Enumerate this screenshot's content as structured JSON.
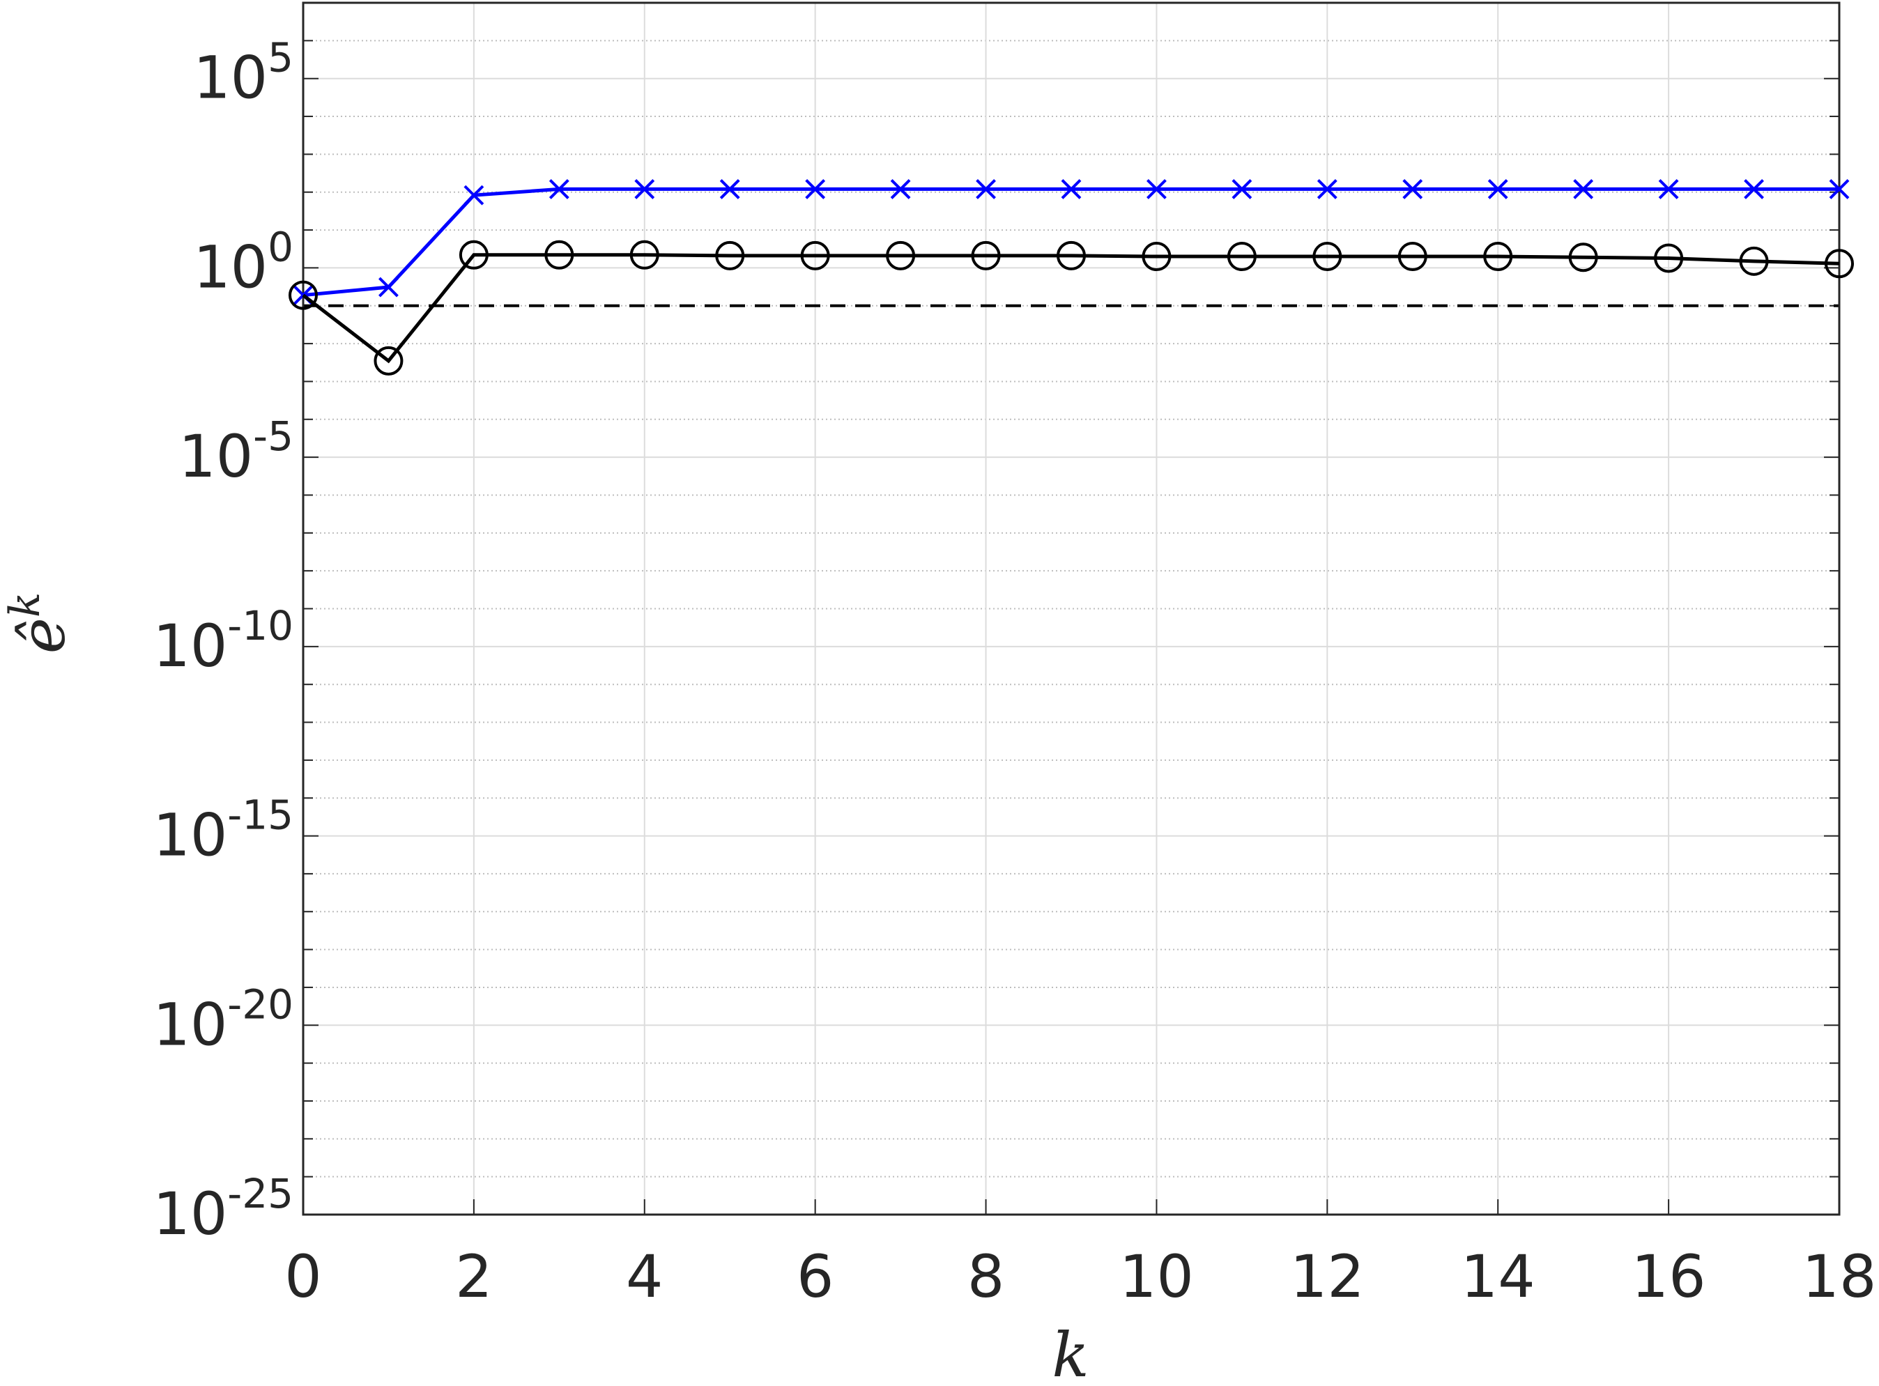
{
  "chart_data": {
    "type": "line",
    "x": [
      0,
      1,
      2,
      3,
      4,
      5,
      6,
      7,
      8,
      9,
      10,
      11,
      12,
      13,
      14,
      15,
      16,
      17,
      18
    ],
    "series": [
      {
        "color": "#0000ff",
        "marker": "x",
        "values": [
          0.19,
          0.31,
          83,
          120,
          120,
          120,
          120,
          120,
          120,
          120,
          120,
          120,
          120,
          120,
          120,
          120,
          120,
          120,
          120
        ]
      },
      {
        "color": "#000000",
        "marker": "o",
        "values": [
          0.19,
          0.0035,
          2.2,
          2.2,
          2.2,
          2.1,
          2.1,
          2.1,
          2.1,
          2.1,
          2.0,
          2.0,
          2.0,
          2.0,
          2.0,
          1.9,
          1.8,
          1.5,
          1.3
        ]
      }
    ],
    "reference_line": {
      "y": 0.1,
      "color": "#000000",
      "dashed": true
    },
    "xlim": [
      0,
      18
    ],
    "xticks": [
      0,
      2,
      4,
      6,
      8,
      10,
      12,
      14,
      16,
      18
    ],
    "ylim": [
      1e-25,
      10000000.0
    ],
    "log_y": true,
    "yticks": [
      {
        "value": 1e-25,
        "label": "10",
        "exponent": "-25"
      },
      {
        "value": 1e-20,
        "label": "10",
        "exponent": "-20"
      },
      {
        "value": 1e-15,
        "label": "10",
        "exponent": "-15"
      },
      {
        "value": 1e-10,
        "label": "10",
        "exponent": "-10"
      },
      {
        "value": 1e-05,
        "label": "10",
        "exponent": "-5"
      },
      {
        "value": 1,
        "label": "10",
        "exponent": "0"
      },
      {
        "value": 100000.0,
        "label": "10",
        "exponent": "5"
      }
    ],
    "yminorticks": [
      1e-24,
      1e-23,
      1e-22,
      1e-21,
      1e-19,
      1e-18,
      1e-17,
      1e-16,
      1e-14,
      1e-13,
      1e-12,
      1e-11,
      1e-09,
      1e-08,
      1e-07,
      1e-06,
      0.0001,
      0.001,
      0.01,
      0.1,
      10.0,
      100.0,
      1000.0,
      10000.0,
      1000000.0,
      10000000.0
    ],
    "xlabel": "k",
    "ylabel": {
      "text": "ê",
      "superscript": "k"
    },
    "grid": true
  }
}
